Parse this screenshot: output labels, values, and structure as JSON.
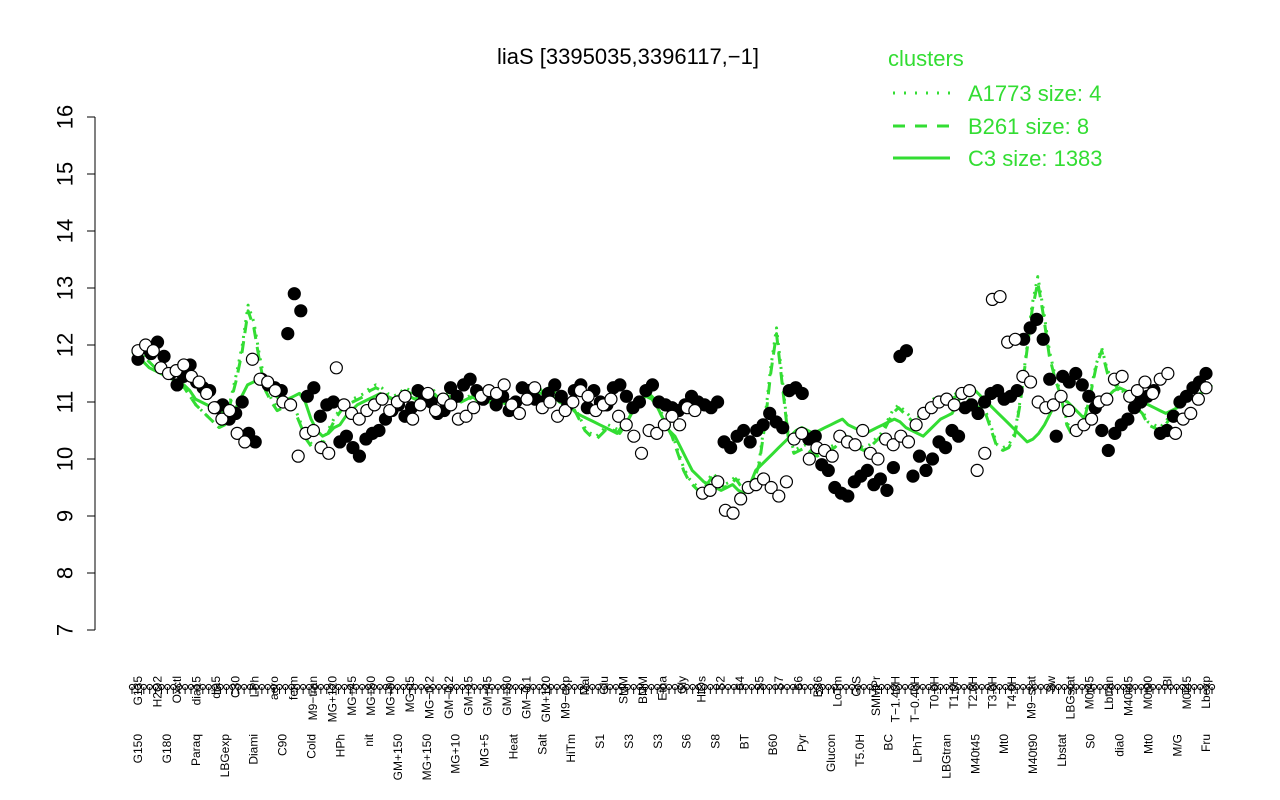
{
  "chart_data": {
    "type": "line",
    "title": "liaS [3395035,3396117,−1]",
    "xlabel": "",
    "ylabel": "",
    "ylim": [
      7,
      16
    ],
    "yticks": [
      7,
      8,
      9,
      10,
      11,
      12,
      13,
      14,
      15,
      16
    ],
    "grid": false,
    "legend": {
      "title": "clusters",
      "position": "top-right",
      "color": "#33dd33",
      "entries": [
        {
          "label": "A1773 size: 4",
          "style": "dotted"
        },
        {
          "label": "B261 size: 8",
          "style": "dashed"
        },
        {
          "label": "C3 size: 1383",
          "style": "solid"
        }
      ]
    },
    "x_tick_labels_upper": [
      "G135",
      "H2O2",
      "Oxctl",
      "dia15",
      "dia5",
      "C30",
      "LPh",
      "aero",
      "ferm",
      "M9−tran",
      "MG+120",
      "MG+45",
      "MG+60",
      "MG+90",
      "MG+t5",
      "MG−0.2",
      "GM−0.2",
      "GM+15",
      "GM+45",
      "GM+60",
      "GM−0.1",
      "GM+120",
      "M9−exp",
      "Mal",
      "Glu",
      "SMM",
      "BMM",
      "Etha",
      "Gly",
      "HiOs",
      "S2",
      "S4",
      "S5",
      "S7",
      "S6",
      "B36",
      "LoTm",
      "G/S",
      "SMMPr",
      "T−1.40H",
      "T−0.40H",
      "T0.0H",
      "T1.0H",
      "T2.0H",
      "T3.0H",
      "T4.0H",
      "M9−stat",
      "Sw",
      "LBGstat",
      "M0t45",
      "Lbtran",
      "M40t45",
      "M0t90",
      "Bl",
      "M0t45",
      "Lbexp"
    ],
    "x_tick_labels_lower": [
      "G150",
      "G180",
      "Paraq",
      "LBGexp",
      "Diami",
      "C90",
      "Cold",
      "HPh",
      "nit",
      "GM+150",
      "MG+150",
      "MG+10",
      "MG+5",
      "Heat",
      "Salt",
      "HiTm",
      "S1",
      "S3",
      "S3",
      "S6",
      "S8",
      "BT",
      "B60",
      "Pyr",
      "Glucon",
      "T5.0H",
      "BC",
      "LPhT",
      "LBGtran",
      "M40t45",
      "Mt0",
      "M40t90",
      "Lbstat",
      "S0",
      "dia0",
      "Mt0",
      "M/G",
      "Fru"
    ],
    "series": [
      {
        "style": "solid",
        "values": [
          11.75,
          11.8,
          11.7,
          11.6,
          11.55,
          11.5,
          11.45,
          11.4,
          11.35,
          11.3,
          11.2,
          11.05,
          11.0,
          10.95,
          10.9,
          10.85,
          10.8,
          10.75,
          10.9,
          11.1,
          11.3,
          11.35,
          11.4,
          11.3,
          11.2,
          11.1,
          11.0,
          11.05,
          11.1,
          11.15,
          11.0,
          10.7,
          10.5,
          10.4,
          10.45,
          10.55,
          10.6,
          10.75,
          10.85,
          10.95,
          11.0,
          11.05,
          11.1,
          11.15,
          11.1,
          11.05,
          11.1,
          11.15,
          11.1,
          11.05,
          11.1,
          11.15,
          11.1,
          11.05,
          11.1,
          11.1,
          11.05,
          11.0,
          11.05,
          11.1,
          11.0,
          11.0,
          11.0,
          11.05,
          11.0,
          10.95,
          11.0,
          11.0,
          11.05,
          11.1,
          11.15,
          11.15,
          11.2,
          11.1,
          11.0,
          10.95,
          10.9,
          10.8,
          10.75,
          10.7,
          10.65,
          10.6,
          10.55,
          10.5,
          10.45,
          10.6,
          10.7,
          10.9,
          11.05,
          11.1,
          11.05,
          10.9,
          10.7,
          10.5,
          10.4,
          10.2,
          10.0,
          9.8,
          9.7,
          9.6,
          9.55,
          9.5,
          9.45,
          9.5,
          9.55,
          9.45,
          9.4,
          9.55,
          9.8,
          9.9,
          10.0,
          10.1,
          10.2,
          10.3,
          10.4,
          10.5,
          10.55,
          10.5,
          10.45,
          10.5,
          10.55,
          10.6,
          10.65,
          10.7,
          10.6,
          10.55,
          10.5,
          10.45,
          10.5,
          10.55,
          10.6,
          10.65,
          10.7,
          10.65,
          10.55,
          10.5,
          10.45,
          10.4,
          10.5,
          10.6,
          10.7,
          10.75,
          10.8,
          11.0,
          11.2,
          11.25,
          11.2,
          11.1,
          11.0,
          10.9,
          10.8,
          10.7,
          10.6,
          10.5,
          10.4,
          10.3,
          10.35,
          10.45,
          10.6,
          10.8,
          11.0,
          11.05,
          11.0,
          10.9,
          10.8,
          10.7,
          10.75,
          10.85,
          11.0,
          11.1,
          11.2,
          11.25,
          11.2,
          11.15,
          11.1,
          11.0,
          10.95,
          10.9,
          10.85,
          10.8,
          10.85,
          10.9,
          11.0,
          11.05,
          11.1,
          11.15,
          11.2,
          11.25
        ]
      },
      {
        "style": "dashed",
        "values": [
          11.85,
          11.9,
          11.8,
          11.7,
          11.6,
          11.5,
          11.45,
          11.4,
          11.3,
          11.25,
          11.1,
          10.95,
          10.85,
          10.75,
          10.65,
          10.55,
          10.6,
          11.0,
          11.4,
          11.9,
          12.6,
          12.3,
          11.7,
          11.2,
          11.0,
          10.85,
          10.9,
          11.0,
          10.85,
          10.6,
          10.35,
          10.2,
          10.15,
          10.3,
          10.5,
          10.7,
          10.85,
          10.95,
          11.0,
          11.05,
          11.1,
          11.2,
          11.25,
          11.2,
          11.1,
          11.05,
          11.1,
          11.2,
          11.15,
          11.05,
          11.1,
          11.2,
          11.15,
          11.05,
          11.1,
          11.1,
          11.05,
          11.0,
          11.05,
          11.1,
          11.0,
          11.0,
          11.0,
          11.05,
          11.0,
          10.95,
          11.0,
          11.0,
          11.05,
          11.1,
          11.15,
          11.2,
          11.2,
          11.1,
          11.0,
          10.95,
          10.9,
          10.7,
          10.5,
          10.4,
          10.35,
          10.45,
          10.55,
          10.5,
          10.45,
          10.6,
          10.8,
          10.9,
          11.05,
          11.15,
          11.05,
          10.8,
          10.6,
          10.4,
          10.1,
          9.8,
          9.6,
          9.5,
          9.4,
          9.55,
          9.7,
          9.6,
          9.5,
          9.55,
          9.65,
          9.5,
          9.45,
          9.6,
          9.9,
          10.6,
          11.5,
          12.2,
          11.3,
          10.4,
          10.1,
          10.15,
          10.2,
          10.1,
          10.05,
          10.1,
          10.15,
          10.2,
          10.3,
          10.4,
          10.3,
          10.2,
          10.15,
          10.2,
          10.3,
          10.4,
          10.6,
          10.8,
          10.9,
          10.8,
          10.7,
          10.6,
          10.8,
          10.9,
          11.0,
          11.05,
          11.0,
          11.05,
          11.1,
          11.1,
          11.0,
          10.95,
          10.9,
          10.8,
          10.5,
          10.2,
          10.15,
          10.2,
          10.4,
          11.0,
          11.8,
          12.6,
          13.1,
          12.5,
          11.8,
          11.4,
          11.1,
          10.6,
          10.4,
          10.45,
          10.7,
          11.1,
          11.6,
          11.9,
          11.5,
          11.35,
          11.2,
          11.1,
          11.0,
          10.9,
          10.8,
          10.6,
          10.55,
          10.5,
          10.6,
          10.75,
          10.9,
          11.0,
          11.05,
          11.1,
          11.15,
          11.2,
          11.3
        ]
      },
      {
        "style": "dotted",
        "values": [
          11.9,
          11.95,
          11.85,
          11.7,
          11.6,
          11.5,
          11.45,
          11.4,
          11.3,
          11.25,
          11.1,
          10.95,
          10.85,
          10.75,
          10.65,
          10.55,
          10.65,
          11.05,
          11.5,
          12.0,
          12.7,
          12.4,
          11.8,
          11.3,
          11.05,
          10.9,
          10.95,
          11.0,
          10.9,
          10.65,
          10.4,
          10.25,
          10.2,
          10.35,
          10.55,
          10.75,
          10.9,
          11.0,
          11.05,
          11.1,
          11.15,
          11.25,
          11.3,
          11.25,
          11.15,
          11.1,
          11.15,
          11.25,
          11.2,
          11.1,
          11.15,
          11.25,
          11.2,
          11.1,
          11.15,
          11.15,
          11.1,
          11.05,
          11.1,
          11.15,
          11.05,
          11.05,
          11.05,
          11.1,
          11.05,
          11.0,
          11.05,
          11.05,
          11.1,
          11.15,
          11.2,
          11.25,
          11.25,
          11.15,
          11.05,
          11.0,
          10.95,
          10.75,
          10.55,
          10.45,
          10.4,
          10.5,
          10.6,
          10.55,
          10.5,
          10.65,
          10.85,
          10.95,
          11.1,
          11.2,
          11.1,
          10.85,
          10.65,
          10.45,
          10.15,
          9.85,
          9.65,
          9.55,
          9.45,
          9.6,
          9.75,
          9.65,
          9.55,
          9.6,
          9.7,
          9.55,
          9.5,
          9.65,
          9.95,
          10.7,
          11.6,
          12.3,
          11.4,
          10.45,
          10.15,
          10.2,
          10.25,
          10.15,
          10.1,
          10.15,
          10.2,
          10.25,
          10.35,
          10.45,
          10.35,
          10.25,
          10.2,
          10.25,
          10.35,
          10.45,
          10.65,
          10.85,
          10.95,
          10.85,
          10.75,
          10.65,
          10.85,
          10.95,
          11.05,
          11.1,
          11.05,
          11.1,
          11.15,
          11.15,
          11.05,
          11.0,
          10.95,
          10.85,
          10.55,
          10.25,
          10.2,
          10.25,
          10.45,
          11.05,
          11.85,
          12.7,
          13.2,
          12.6,
          11.9,
          11.45,
          11.15,
          10.65,
          10.45,
          10.5,
          10.75,
          11.15,
          11.65,
          11.95,
          11.55,
          11.4,
          11.25,
          11.15,
          11.05,
          10.95,
          10.85,
          10.65,
          10.6,
          10.55,
          10.65,
          10.8,
          10.95,
          11.05,
          11.1,
          11.15,
          11.2,
          11.25,
          11.35
        ]
      }
    ],
    "points_filled": [
      11.75,
      11.95,
      11.85,
      12.05,
      11.8,
      11.5,
      11.3,
      11.45,
      11.65,
      11.35,
      11.25,
      11.2,
      10.9,
      10.95,
      10.7,
      10.8,
      11.0,
      10.45,
      10.3,
      11.4,
      11.3,
      11.25,
      11.2,
      12.2,
      12.9,
      12.6,
      11.1,
      11.25,
      10.75,
      10.95,
      11.0,
      10.3,
      10.4,
      10.2,
      10.05,
      10.35,
      10.45,
      10.5,
      10.7,
      10.85,
      10.95,
      10.75,
      10.9,
      11.2,
      11.05,
      11.0,
      10.8,
      10.85,
      11.25,
      11.1,
      11.3,
      11.4,
      11.2,
      11.05,
      11.15,
      10.95,
      11.1,
      10.85,
      11.0,
      11.25,
      11.2,
      11.05,
      11.0,
      11.15,
      11.3,
      11.1,
      10.95,
      11.2,
      11.3,
      10.9,
      11.2,
      11.0,
      10.95,
      11.25,
      11.3,
      11.1,
      10.9,
      11.0,
      11.2,
      11.3,
      11.0,
      10.95,
      10.9,
      10.85,
      10.95,
      11.1,
      11.0,
      10.95,
      10.9,
      11.0,
      10.3,
      10.2,
      10.4,
      10.5,
      10.3,
      10.5,
      10.6,
      10.8,
      10.65,
      10.55,
      11.2,
      11.25,
      11.15,
      10.35,
      10.4,
      9.9,
      9.8,
      9.5,
      9.4,
      9.35,
      9.6,
      9.7,
      9.8,
      9.55,
      9.65,
      9.45,
      9.85,
      11.8,
      11.9,
      9.7,
      10.05,
      9.8,
      10.0,
      10.3,
      10.2,
      10.5,
      10.4,
      10.9,
      10.95,
      10.8,
      11.0,
      11.15,
      11.2,
      11.05,
      11.1,
      11.2,
      12.1,
      12.3,
      12.45,
      12.1,
      11.4,
      10.4,
      11.45,
      11.35,
      11.5,
      11.3,
      11.1,
      10.9,
      10.5,
      10.15,
      10.45,
      10.6,
      10.7,
      10.9,
      11.0,
      11.1,
      11.2,
      10.45,
      10.5,
      10.75,
      11.0,
      11.1,
      11.25,
      11.35,
      11.5
    ],
    "points_open": [
      11.9,
      12.0,
      11.9,
      11.6,
      11.5,
      11.55,
      11.65,
      11.45,
      11.35,
      11.15,
      10.9,
      10.7,
      10.85,
      10.45,
      10.3,
      11.75,
      11.4,
      11.35,
      11.2,
      11.0,
      10.95,
      10.05,
      10.45,
      10.5,
      10.2,
      10.1,
      11.6,
      10.95,
      10.8,
      10.7,
      10.85,
      10.95,
      11.05,
      10.85,
      11.0,
      11.1,
      10.7,
      10.95,
      11.15,
      10.85,
      11.05,
      10.95,
      10.7,
      10.75,
      10.9,
      11.1,
      11.2,
      11.15,
      11.3,
      10.95,
      10.8,
      11.05,
      11.25,
      10.9,
      11.0,
      10.75,
      10.85,
      11.0,
      11.2,
      11.1,
      10.85,
      10.95,
      11.05,
      10.75,
      10.6,
      10.4,
      10.1,
      10.5,
      10.45,
      10.6,
      10.75,
      10.6,
      10.9,
      10.85,
      9.4,
      9.45,
      9.6,
      9.1,
      9.05,
      9.3,
      9.5,
      9.55,
      9.65,
      9.5,
      9.35,
      9.6,
      10.35,
      10.45,
      10.0,
      10.2,
      10.15,
      10.05,
      10.4,
      10.3,
      10.25,
      10.5,
      10.1,
      10.0,
      10.35,
      10.25,
      10.4,
      10.3,
      10.6,
      10.8,
      10.9,
      11.0,
      11.05,
      10.95,
      11.15,
      11.2,
      9.8,
      10.1,
      12.8,
      12.85,
      12.05,
      12.1,
      11.45,
      11.35,
      11.0,
      10.9,
      10.95,
      11.1,
      10.85,
      10.5,
      10.6,
      10.7,
      11.0,
      11.05,
      11.4,
      11.45,
      11.1,
      11.2,
      11.35,
      11.15,
      11.4,
      11.5,
      10.45,
      10.7,
      10.8,
      11.05,
      11.25
    ]
  }
}
